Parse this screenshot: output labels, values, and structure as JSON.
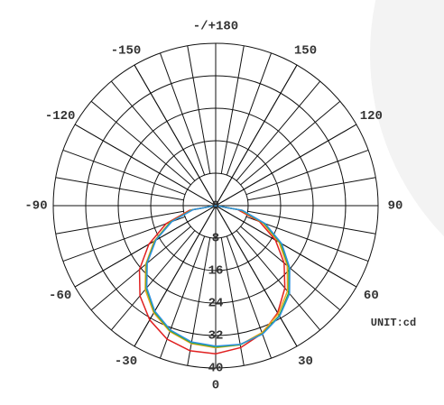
{
  "chart_data": {
    "type": "polar",
    "unit_label": "UNIT:cd",
    "angles": [
      -90,
      -80,
      -70,
      -60,
      -50,
      -40,
      -30,
      -20,
      -10,
      0,
      10,
      20,
      30,
      40,
      50,
      60,
      70,
      80,
      90
    ],
    "series": [
      {
        "color": "#e02020",
        "values": [
          0,
          6.5,
          13,
          19,
          24.5,
          29,
          32.5,
          35,
          36.3,
          36.5,
          35.5,
          33.5,
          30.5,
          26.5,
          22,
          17,
          11.5,
          5.5,
          0
        ]
      },
      {
        "color": "#f0a020",
        "values": [
          0,
          6,
          12,
          17.5,
          22.5,
          27,
          30.5,
          33,
          34.5,
          35,
          34.8,
          33.3,
          30.8,
          27.5,
          23,
          18,
          12.3,
          6.2,
          0
        ]
      },
      {
        "color": "#30b030",
        "values": [
          0,
          5.8,
          11.8,
          17.2,
          22.2,
          26.6,
          30.2,
          32.8,
          34.3,
          34.8,
          34.8,
          33.6,
          31.3,
          28,
          23.5,
          18.5,
          12.7,
          6.5,
          0
        ]
      },
      {
        "color": "#3090e0",
        "values": [
          0,
          5.6,
          11.5,
          17,
          22,
          26.4,
          30,
          32.6,
          34.1,
          34.6,
          34.7,
          33.7,
          31.5,
          28.3,
          23.8,
          18.8,
          13,
          6.7,
          0
        ]
      }
    ],
    "rlim": [
      0,
      40
    ],
    "rticks": [
      0,
      8,
      16,
      24,
      32,
      40
    ],
    "angle_ticks": [
      0,
      30,
      60,
      90,
      120,
      150,
      {
        "value": 180,
        "label": "-/+180"
      },
      -150,
      -120,
      -90,
      -60,
      -30
    ]
  }
}
